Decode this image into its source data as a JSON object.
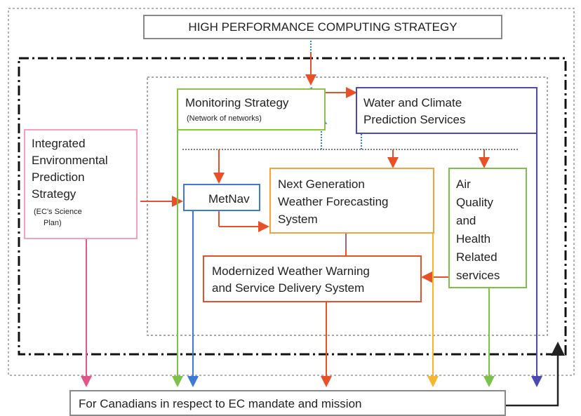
{
  "header": {
    "title": "HIGH PERFORMANCE COMPUTING STRATEGY"
  },
  "nodes": [
    {
      "id": "monitoring",
      "label": "Monitoring Strategy",
      "sublabel": "(Network of networks)"
    },
    {
      "id": "water",
      "lines": [
        "Water and Climate",
        "Prediction Services"
      ]
    },
    {
      "id": "ieps",
      "lines": [
        "Integrated",
        "Environmental",
        "Prediction",
        "Strategy"
      ],
      "sublines": [
        "(EC's Science",
        "Plan)"
      ]
    },
    {
      "id": "metnav",
      "label": "MetNav"
    },
    {
      "id": "nextgen",
      "lines": [
        "Next Generation",
        "Weather Forecasting",
        "System"
      ]
    },
    {
      "id": "air",
      "lines": [
        "Air",
        "Quality",
        "and",
        "Health",
        "Related",
        "services"
      ]
    },
    {
      "id": "modernized",
      "lines": [
        "Modernized Weather Warning",
        "and Service Delivery System"
      ]
    }
  ],
  "footer": {
    "label": "For Canadians in respect to EC mandate and mission"
  }
}
